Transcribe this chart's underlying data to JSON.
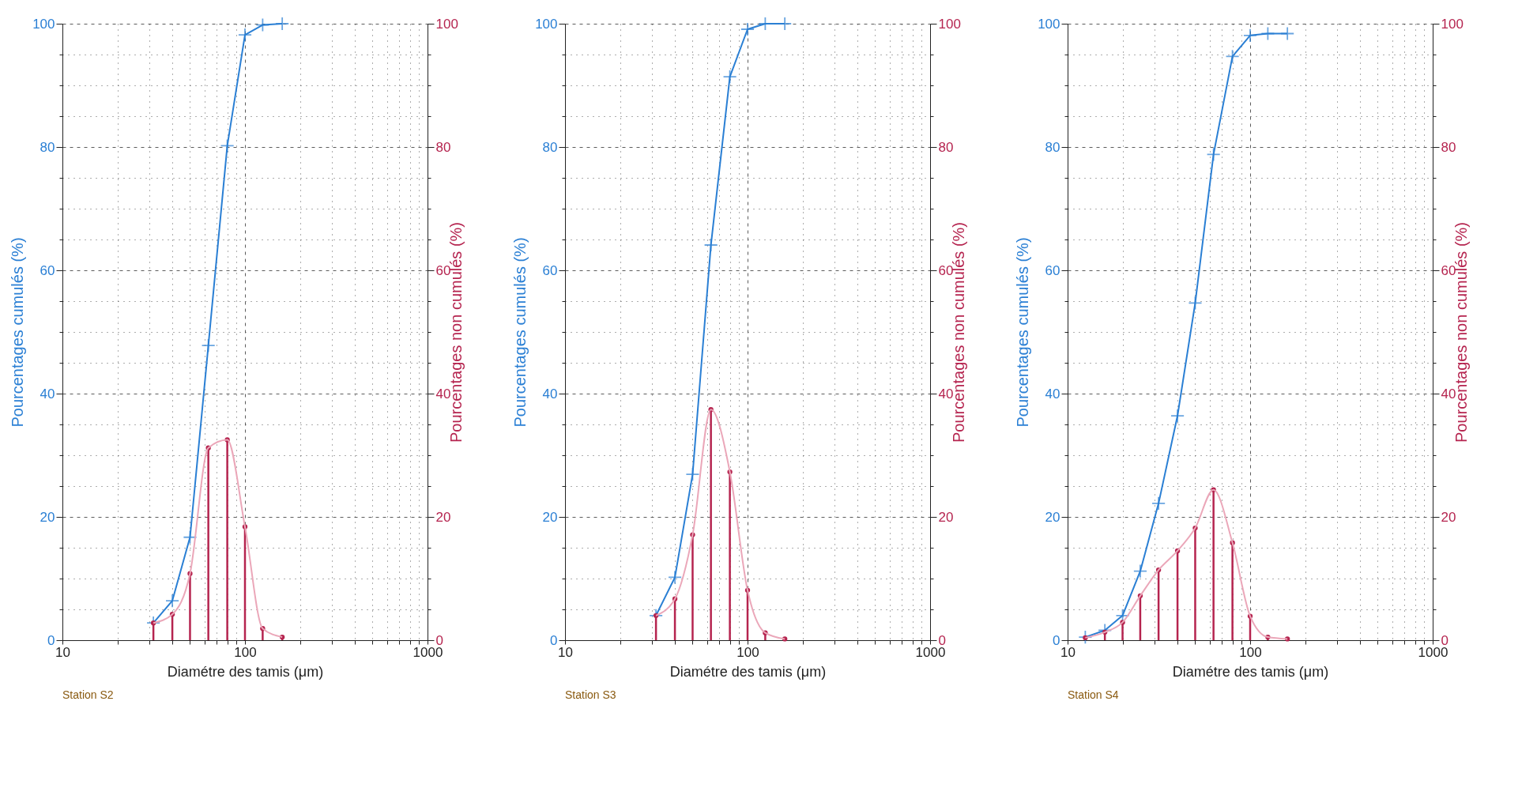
{
  "chart_data": [
    {
      "type": "line",
      "xlabel": "Diamétre des tamis (μm)",
      "ylabel": "Pourcentages cumulés (%)",
      "y2label": "Pourcentages non cumulés (%)",
      "annotations": [
        "Station S2"
      ],
      "log": "x",
      "grid": true,
      "x": [
        31.5,
        40,
        50,
        63,
        80,
        100,
        125,
        160
      ],
      "xlim": [
        10,
        1000
      ],
      "xticks": [
        10,
        {
          "value": 20,
          "label": null
        },
        {
          "value": 30,
          "label": null
        },
        {
          "value": 40,
          "label": null
        },
        {
          "value": 50,
          "label": null
        },
        {
          "value": 60,
          "label": null
        },
        {
          "value": 70,
          "label": null
        },
        {
          "value": 80,
          "label": null
        },
        {
          "value": 90,
          "label": null
        },
        100,
        {
          "value": 200,
          "label": null
        },
        {
          "value": 300,
          "label": null
        },
        {
          "value": 400,
          "label": null
        },
        {
          "value": 500,
          "label": null
        },
        {
          "value": 600,
          "label": null
        },
        {
          "value": 700,
          "label": null
        },
        {
          "value": 800,
          "label": null
        },
        {
          "value": 900,
          "label": null
        },
        1000
      ],
      "ylim": [
        0,
        100
      ],
      "yticks": [
        0,
        {
          "value": 5,
          "label": null
        },
        {
          "value": 10,
          "label": null
        },
        {
          "value": 15,
          "label": null
        },
        20,
        {
          "value": 25,
          "label": null
        },
        {
          "value": 30,
          "label": null
        },
        {
          "value": 35,
          "label": null
        },
        40,
        {
          "value": 45,
          "label": null
        },
        {
          "value": 50,
          "label": null
        },
        {
          "value": 55,
          "label": null
        },
        60,
        {
          "value": 65,
          "label": null
        },
        {
          "value": 70,
          "label": null
        },
        {
          "value": 75,
          "label": null
        },
        80,
        {
          "value": 85,
          "label": null
        },
        {
          "value": 90,
          "label": null
        },
        {
          "value": 95,
          "label": null
        },
        100
      ],
      "y2lim": [
        0,
        100
      ],
      "y2ticks": [
        0,
        {
          "value": 5,
          "label": null
        },
        {
          "value": 10,
          "label": null
        },
        {
          "value": 15,
          "label": null
        },
        20,
        {
          "value": 25,
          "label": null
        },
        {
          "value": 30,
          "label": null
        },
        {
          "value": 35,
          "label": null
        },
        40,
        {
          "value": 45,
          "label": null
        },
        {
          "value": 50,
          "label": null
        },
        {
          "value": 55,
          "label": null
        },
        60,
        {
          "value": 65,
          "label": null
        },
        {
          "value": 70,
          "label": null
        },
        {
          "value": 75,
          "label": null
        },
        80,
        {
          "value": 85,
          "label": null
        },
        {
          "value": 90,
          "label": null
        },
        {
          "value": 95,
          "label": null
        },
        100
      ],
      "series": [
        {
          "type": "line",
          "color": "#2a7fd4",
          "marker": "cross",
          "values": [
            2.8,
            6.4,
            16.7,
            47.8,
            80.2,
            98.2,
            99.8,
            100
          ]
        },
        {
          "type": "lollipop",
          "axis": "y2",
          "color": "#b5244f",
          "values": [
            2.8,
            4.2,
            10.8,
            31.2,
            32.5,
            18.4,
            1.9,
            0.5
          ]
        },
        {
          "type": "line",
          "axis": "y2",
          "color": "#eba7b9",
          "values": [
            2.8,
            4.2,
            10.8,
            31.2,
            32.5,
            18.4,
            1.9,
            0.5
          ]
        }
      ]
    },
    {
      "type": "line",
      "xlabel": "Diamétre des tamis (μm)",
      "ylabel": "Pourcentages cumulés (%)",
      "y2label": "Pourcentages non cumulés (%)",
      "annotations": [
        "Station S3"
      ],
      "log": "x",
      "grid": true,
      "x": [
        31.5,
        40,
        50,
        63,
        80,
        100,
        125,
        160
      ],
      "xlim": [
        10,
        1000
      ],
      "xticks": [
        10,
        {
          "value": 20,
          "label": null
        },
        {
          "value": 30,
          "label": null
        },
        {
          "value": 40,
          "label": null
        },
        {
          "value": 50,
          "label": null
        },
        {
          "value": 60,
          "label": null
        },
        {
          "value": 70,
          "label": null
        },
        {
          "value": 80,
          "label": null
        },
        {
          "value": 90,
          "label": null
        },
        100,
        {
          "value": 200,
          "label": null
        },
        {
          "value": 300,
          "label": null
        },
        {
          "value": 400,
          "label": null
        },
        {
          "value": 500,
          "label": null
        },
        {
          "value": 600,
          "label": null
        },
        {
          "value": 700,
          "label": null
        },
        {
          "value": 800,
          "label": null
        },
        {
          "value": 900,
          "label": null
        },
        1000
      ],
      "ylim": [
        0,
        100
      ],
      "yticks": [
        0,
        {
          "value": 5,
          "label": null
        },
        {
          "value": 10,
          "label": null
        },
        {
          "value": 15,
          "label": null
        },
        20,
        {
          "value": 25,
          "label": null
        },
        {
          "value": 30,
          "label": null
        },
        {
          "value": 35,
          "label": null
        },
        40,
        {
          "value": 45,
          "label": null
        },
        {
          "value": 50,
          "label": null
        },
        {
          "value": 55,
          "label": null
        },
        60,
        {
          "value": 65,
          "label": null
        },
        {
          "value": 70,
          "label": null
        },
        {
          "value": 75,
          "label": null
        },
        80,
        {
          "value": 85,
          "label": null
        },
        {
          "value": 90,
          "label": null
        },
        {
          "value": 95,
          "label": null
        },
        100
      ],
      "y2lim": [
        0,
        100
      ],
      "y2ticks": [
        0,
        {
          "value": 5,
          "label": null
        },
        {
          "value": 10,
          "label": null
        },
        {
          "value": 15,
          "label": null
        },
        20,
        {
          "value": 25,
          "label": null
        },
        {
          "value": 30,
          "label": null
        },
        {
          "value": 35,
          "label": null
        },
        40,
        {
          "value": 45,
          "label": null
        },
        {
          "value": 50,
          "label": null
        },
        {
          "value": 55,
          "label": null
        },
        60,
        {
          "value": 65,
          "label": null
        },
        {
          "value": 70,
          "label": null
        },
        {
          "value": 75,
          "label": null
        },
        80,
        {
          "value": 85,
          "label": null
        },
        {
          "value": 90,
          "label": null
        },
        {
          "value": 95,
          "label": null
        },
        100
      ],
      "series": [
        {
          "type": "line",
          "color": "#2a7fd4",
          "marker": "cross",
          "values": [
            4.0,
            10.2,
            26.9,
            64.1,
            91.4,
            99.1,
            100,
            100
          ]
        },
        {
          "type": "lollipop",
          "axis": "y2",
          "color": "#b5244f",
          "values": [
            4.0,
            6.7,
            17.1,
            37.4,
            27.3,
            8.1,
            1.2,
            0.2
          ]
        },
        {
          "type": "line",
          "axis": "y2",
          "color": "#eba7b9",
          "values": [
            4.0,
            6.7,
            17.1,
            37.4,
            27.3,
            8.1,
            1.2,
            0.2
          ]
        }
      ]
    },
    {
      "type": "line",
      "xlabel": "Diamétre des tamis (μm)",
      "ylabel": "Pourcentages cumulés (%)",
      "y2label": "Pourcentages non cumulés (%)",
      "annotations": [
        "Station S4"
      ],
      "log": "x",
      "grid": true,
      "x": [
        12.5,
        16,
        20,
        25,
        31.5,
        40,
        50,
        63,
        80,
        100,
        125,
        160
      ],
      "xlim": [
        10,
        1000
      ],
      "xticks": [
        10,
        {
          "value": 20,
          "label": null
        },
        {
          "value": 30,
          "label": null
        },
        {
          "value": 40,
          "label": null
        },
        {
          "value": 50,
          "label": null
        },
        {
          "value": 60,
          "label": null
        },
        {
          "value": 70,
          "label": null
        },
        {
          "value": 80,
          "label": null
        },
        {
          "value": 90,
          "label": null
        },
        100,
        {
          "value": 200,
          "label": null
        },
        {
          "value": 300,
          "label": null
        },
        {
          "value": 400,
          "label": null
        },
        {
          "value": 500,
          "label": null
        },
        {
          "value": 600,
          "label": null
        },
        {
          "value": 700,
          "label": null
        },
        {
          "value": 800,
          "label": null
        },
        {
          "value": 900,
          "label": null
        },
        1000
      ],
      "ylim": [
        0,
        100
      ],
      "yticks": [
        0,
        {
          "value": 5,
          "label": null
        },
        {
          "value": 10,
          "label": null
        },
        {
          "value": 15,
          "label": null
        },
        20,
        {
          "value": 25,
          "label": null
        },
        {
          "value": 30,
          "label": null
        },
        {
          "value": 35,
          "label": null
        },
        40,
        {
          "value": 45,
          "label": null
        },
        {
          "value": 50,
          "label": null
        },
        {
          "value": 55,
          "label": null
        },
        60,
        {
          "value": 65,
          "label": null
        },
        {
          "value": 70,
          "label": null
        },
        {
          "value": 75,
          "label": null
        },
        80,
        {
          "value": 85,
          "label": null
        },
        {
          "value": 90,
          "label": null
        },
        {
          "value": 95,
          "label": null
        },
        100
      ],
      "y2lim": [
        0,
        100
      ],
      "y2ticks": [
        0,
        {
          "value": 5,
          "label": null
        },
        {
          "value": 10,
          "label": null
        },
        {
          "value": 15,
          "label": null
        },
        20,
        {
          "value": 25,
          "label": null
        },
        {
          "value": 30,
          "label": null
        },
        {
          "value": 35,
          "label": null
        },
        40,
        {
          "value": 45,
          "label": null
        },
        {
          "value": 50,
          "label": null
        },
        {
          "value": 55,
          "label": null
        },
        60,
        {
          "value": 65,
          "label": null
        },
        {
          "value": 70,
          "label": null
        },
        {
          "value": 75,
          "label": null
        },
        80,
        {
          "value": 85,
          "label": null
        },
        {
          "value": 90,
          "label": null
        },
        {
          "value": 95,
          "label": null
        },
        100
      ],
      "series": [
        {
          "type": "line",
          "color": "#2a7fd4",
          "marker": "cross",
          "values": [
            0.5,
            1.6,
            4.0,
            11.2,
            22.2,
            36.4,
            54.7,
            78.8,
            94.7,
            98.1,
            98.4,
            98.4
          ]
        },
        {
          "type": "lollipop",
          "axis": "y2",
          "color": "#b5244f",
          "values": [
            0.4,
            1.3,
            2.9,
            7.2,
            11.4,
            14.5,
            18.2,
            24.4,
            15.8,
            3.9,
            0.5,
            0.2
          ]
        },
        {
          "type": "line",
          "axis": "y2",
          "color": "#eba7b9",
          "values": [
            0.4,
            1.3,
            2.9,
            7.2,
            11.4,
            14.5,
            18.2,
            24.4,
            15.8,
            3.9,
            0.5,
            0.2
          ]
        }
      ]
    }
  ]
}
